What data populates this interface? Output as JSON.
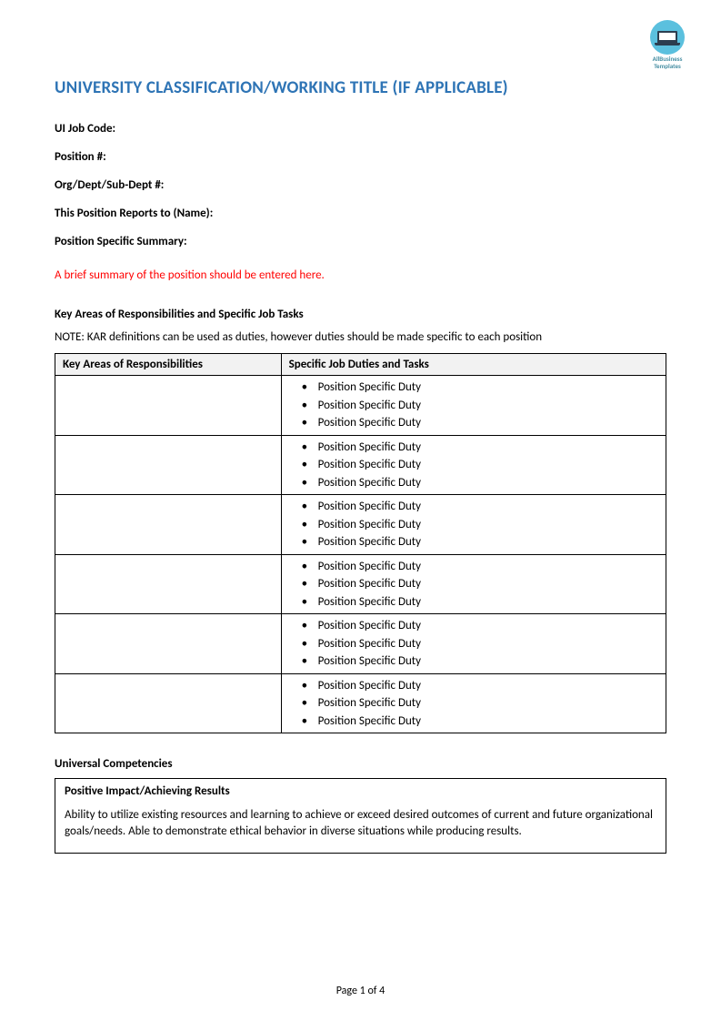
{
  "logo": {
    "line1": "AllBusiness",
    "line2": "Templates"
  },
  "title": "UNIVERSITY CLASSIFICATION/WORKING TITLE (IF APPLICABLE)",
  "fields": {
    "jobCode": "UI Job Code:",
    "position": "Position #:",
    "orgDept": "Org/Dept/Sub-Dept #:",
    "reportsTo": "This Position Reports to (Name):",
    "summary": "Position Specific Summary:"
  },
  "summaryPlaceholder": "A brief summary of the position should be entered here.",
  "karSection": {
    "heading": "Key Areas of Responsibilities and Specific Job Tasks",
    "note": "NOTE: KAR definitions can be used as duties, however duties should be made specific to each position",
    "col1": "Key Areas of Responsibilities",
    "col2": "Specific Job  Duties and Tasks",
    "duty": "Position Specific Duty",
    "rowCount": 6,
    "dutiesPerRow": 3
  },
  "competencies": {
    "heading": "Universal Competencies",
    "boxTitle": "Positive Impact/Achieving Results",
    "boxText": "Ability to utilize existing resources and learning to achieve or exceed desired outcomes of current and future organizational goals/needs.  Able to demonstrate ethical behavior in diverse situations while producing results."
  },
  "footer": "Page 1 of 4",
  "colors": {
    "titleColor": "#2e74b5",
    "placeholderColor": "#ff0000",
    "tableHeaderBg": "#f2f2f2",
    "logoBg": "#5bc0de"
  }
}
